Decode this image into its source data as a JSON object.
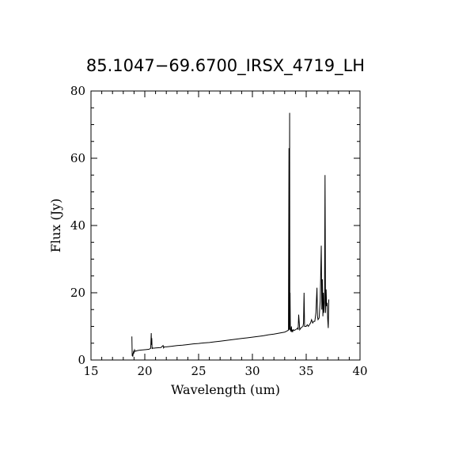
{
  "chart_data": {
    "type": "line",
    "title": "85.1047−69.6700_IRSX_4719_LH",
    "xlabel": "Wavelength (um)",
    "ylabel": "Flux (Jy)",
    "xlim": [
      15,
      40
    ],
    "ylim": [
      0,
      80
    ],
    "xticks": [
      15,
      20,
      25,
      30,
      35,
      40
    ],
    "yticks": [
      0,
      20,
      40,
      60,
      80
    ],
    "xtick_labels": [
      "15",
      "20",
      "25",
      "30",
      "35",
      "40"
    ],
    "ytick_labels": [
      "0",
      "20",
      "40",
      "60",
      "80"
    ],
    "grid": false,
    "series": [
      {
        "color": "#000000",
        "x": [
          18.8,
          18.83,
          18.85,
          18.88,
          18.92,
          18.96,
          19.0,
          19.05,
          19.1,
          19.3,
          19.5,
          19.8,
          20.1,
          20.4,
          20.55,
          20.6,
          20.62,
          20.65,
          20.68,
          20.72,
          20.8,
          21.0,
          21.5,
          21.7,
          21.75,
          21.8,
          22.0,
          22.5,
          23.0,
          23.5,
          24.0,
          24.5,
          25.0,
          25.5,
          26.0,
          26.5,
          27.0,
          27.5,
          28.0,
          28.5,
          29.0,
          29.5,
          30.0,
          30.5,
          31.0,
          31.5,
          32.0,
          32.5,
          33.0,
          33.2,
          33.35,
          33.4,
          33.43,
          33.46,
          33.48,
          33.5,
          33.53,
          33.56,
          33.6,
          33.63,
          33.66,
          33.7,
          33.75,
          33.8,
          33.9,
          34.0,
          34.1,
          34.2,
          34.25,
          34.3,
          34.4,
          34.5,
          34.6,
          34.7,
          34.75,
          34.8,
          34.85,
          34.9,
          35.0,
          35.1,
          35.2,
          35.3,
          35.4,
          35.5,
          35.6,
          35.7,
          35.8,
          35.9,
          36.0,
          36.05,
          36.1,
          36.2,
          36.3,
          36.4,
          36.45,
          36.5,
          36.55,
          36.6,
          36.65,
          36.7,
          36.75,
          36.8,
          36.85,
          36.9,
          36.95,
          37.0,
          37.05,
          37.1
        ],
        "y": [
          7.0,
          1.2,
          2.0,
          1.0,
          1.8,
          2.5,
          2.2,
          3.0,
          2.6,
          2.8,
          2.9,
          3.0,
          3.1,
          3.2,
          3.5,
          8.0,
          4.5,
          6.5,
          3.3,
          3.6,
          3.5,
          3.6,
          3.7,
          4.3,
          3.6,
          3.9,
          3.9,
          4.1,
          4.3,
          4.4,
          4.6,
          4.8,
          4.9,
          5.1,
          5.2,
          5.4,
          5.6,
          5.8,
          6.0,
          6.2,
          6.4,
          6.6,
          6.8,
          7.0,
          7.2,
          7.5,
          7.7,
          8.0,
          8.3,
          8.6,
          8.9,
          63.0,
          9.0,
          73.5,
          9.0,
          20.0,
          9.0,
          8.5,
          9.0,
          10.0,
          8.3,
          9.0,
          8.5,
          9.0,
          8.8,
          9.0,
          9.2,
          9.5,
          9.0,
          13.5,
          9.0,
          9.5,
          9.8,
          10.0,
          11.0,
          20.0,
          10.0,
          10.0,
          10.0,
          10.5,
          10.0,
          10.5,
          11.0,
          12.0,
          11.0,
          11.5,
          11.5,
          14.0,
          21.5,
          13.0,
          12.0,
          12.5,
          17.5,
          34.0,
          15.0,
          24.0,
          13.0,
          20.0,
          14.0,
          17.0,
          55.0,
          14.0,
          21.0,
          16.0,
          17.0,
          12.0,
          9.5,
          18.0
        ]
      }
    ]
  }
}
